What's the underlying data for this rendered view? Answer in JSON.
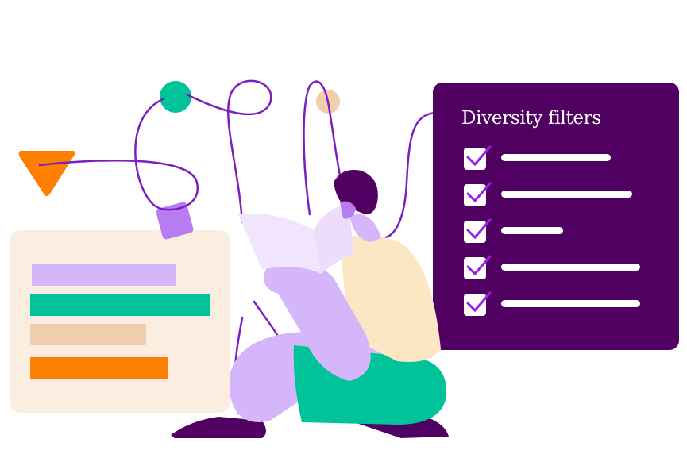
{
  "panel": {
    "title": "Diversity filters",
    "items": [
      {
        "checked": true,
        "bar_fraction": 0.55
      },
      {
        "checked": true,
        "bar_fraction": 0.66
      },
      {
        "checked": true,
        "bar_fraction": 0.31
      },
      {
        "checked": true,
        "bar_fraction": 0.7
      },
      {
        "checked": true,
        "bar_fraction": 0.7
      }
    ]
  },
  "colors": {
    "panel": "#4f0060",
    "lavender": "#d6b6fb",
    "green": "#00c39a",
    "orange": "#ff7f00",
    "peach": "#f1cfad",
    "cream": "#fbeee0",
    "purple_line": "#7b1fc0",
    "violet": "#b77cf1"
  }
}
